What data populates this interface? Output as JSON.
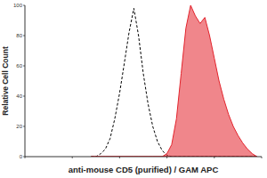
{
  "chart_data": {
    "type": "line",
    "x_label": "anti-mouse CD5 (purified) / GAM APC",
    "y_label": "Relative Cell Count",
    "log": "x",
    "grid": false,
    "tick_labels": "y",
    "xlim": [
      1,
      100000
    ],
    "xticks": [
      1,
      10,
      100,
      1000,
      10000,
      100000
    ],
    "ylim": [
      0,
      100
    ],
    "yticks": [
      0,
      20,
      40,
      60,
      80,
      100
    ],
    "x": [
      25,
      32,
      40,
      50,
      63,
      79,
      100,
      126,
      158,
      200,
      251,
      316,
      398,
      501,
      631,
      794,
      1000,
      1259,
      1585,
      1995,
      2512,
      3162,
      3981,
      5012,
      6310,
      7943,
      10000,
      12589,
      15849,
      19953,
      25119,
      31623,
      39811,
      50119,
      63096,
      79433
    ],
    "series": [
      {
        "type": "line",
        "color": "#000000",
        "line_style": "dashed",
        "values": [
          0,
          0,
          2,
          5,
          12,
          25,
          42,
          62,
          82,
          98,
          80,
          55,
          35,
          20,
          10,
          4,
          1,
          0,
          0,
          0,
          0,
          0,
          0,
          0,
          0,
          0,
          0,
          0,
          0,
          0,
          0,
          0,
          0,
          0,
          0,
          0
        ]
      },
      {
        "type": "area",
        "color": "#e3232c",
        "line_style": "solid",
        "values": [
          0,
          0,
          0,
          0,
          0,
          0,
          0,
          0,
          0,
          0,
          0,
          0,
          0,
          0,
          0,
          0,
          2,
          8,
          25,
          55,
          85,
          100,
          93,
          88,
          92,
          80,
          65,
          50,
          38,
          28,
          20,
          14,
          9,
          5,
          2,
          0
        ]
      }
    ]
  }
}
